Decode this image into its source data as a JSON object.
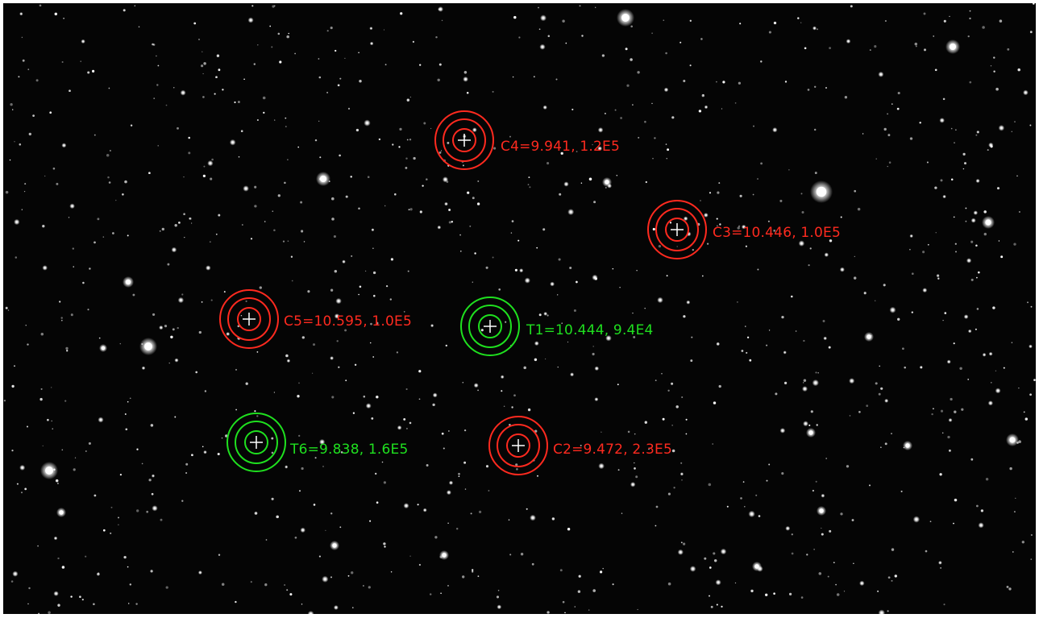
{
  "colors": {
    "comparison": "#ff2a1f",
    "target": "#1fe01f",
    "background": "#050505",
    "star": "#ffffff"
  },
  "apertures": [
    {
      "id": "C4",
      "kind": "comparison",
      "label": "C4=9.941, 1.2E5"
    },
    {
      "id": "C3",
      "kind": "comparison",
      "label": "C3=10.446, 1.0E5"
    },
    {
      "id": "C5",
      "kind": "comparison",
      "label": "C5=10.595, 1.0E5"
    },
    {
      "id": "T1",
      "kind": "target",
      "label": "T1=10.444, 9.4E4"
    },
    {
      "id": "T6",
      "kind": "target",
      "label": "T6=9.838, 1.6E5"
    },
    {
      "id": "C2",
      "kind": "comparison",
      "label": "C2=9.472, 2.3E5"
    }
  ]
}
